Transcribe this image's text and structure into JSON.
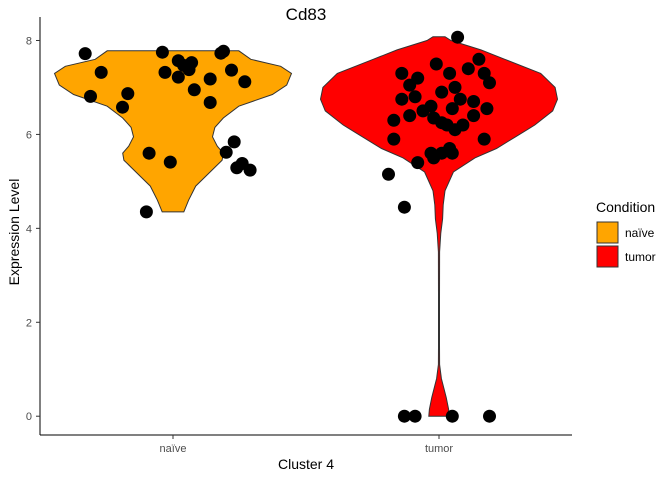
{
  "chart_data": {
    "type": "violin",
    "title": "Cd83",
    "xlabel": "Cluster 4",
    "ylabel": "Expression Level",
    "categories": [
      "naïve",
      "tumor"
    ],
    "ylim": [
      -0.4,
      8.5
    ],
    "yticks": [
      0,
      2,
      4,
      6,
      8
    ],
    "grid": false,
    "legend": {
      "title": "Condition",
      "position": "right",
      "entries": [
        {
          "label": "naïve",
          "color": "#FFA500"
        },
        {
          "label": "tumor",
          "color": "#FF0000"
        }
      ]
    },
    "series": [
      {
        "name": "naïve",
        "color": "#FFA500",
        "violin_range": [
          4.35,
          7.78
        ],
        "density": [
          [
            4.35,
            0.09
          ],
          [
            4.6,
            0.13
          ],
          [
            4.9,
            0.19
          ],
          [
            5.2,
            0.31
          ],
          [
            5.45,
            0.41
          ],
          [
            5.6,
            0.42
          ],
          [
            5.75,
            0.37
          ],
          [
            5.95,
            0.33
          ],
          [
            6.15,
            0.35
          ],
          [
            6.35,
            0.42
          ],
          [
            6.6,
            0.55
          ],
          [
            6.85,
            0.83
          ],
          [
            7.05,
            0.95
          ],
          [
            7.3,
            0.99
          ],
          [
            7.45,
            0.9
          ],
          [
            7.6,
            0.65
          ],
          [
            7.78,
            0.55
          ]
        ],
        "points": [
          [
            -0.04,
            7.75
          ],
          [
            0.19,
            7.77
          ],
          [
            0.18,
            7.73
          ],
          [
            0.02,
            7.57
          ],
          [
            0.07,
            7.53
          ],
          [
            -0.03,
            7.32
          ],
          [
            0.06,
            7.38
          ],
          [
            0.04,
            7.47
          ],
          [
            0.22,
            7.37
          ],
          [
            0.14,
            7.18
          ],
          [
            0.27,
            7.12
          ],
          [
            -0.33,
            7.72
          ],
          [
            -0.27,
            7.32
          ],
          [
            0.02,
            7.22
          ],
          [
            0.08,
            6.95
          ],
          [
            -0.31,
            6.81
          ],
          [
            -0.17,
            6.87
          ],
          [
            0.14,
            6.68
          ],
          [
            -0.19,
            6.58
          ],
          [
            0.23,
            5.84
          ],
          [
            0.2,
            5.62
          ],
          [
            -0.09,
            5.6
          ],
          [
            -0.01,
            5.41
          ],
          [
            0.26,
            5.38
          ],
          [
            0.24,
            5.29
          ],
          [
            0.29,
            5.24
          ],
          [
            -0.1,
            4.35
          ]
        ]
      },
      {
        "name": "tumor",
        "color": "#FF0000",
        "violin_range": [
          0,
          8.08
        ],
        "density": [
          [
            0,
            0.085
          ],
          [
            0.15,
            0.08
          ],
          [
            0.4,
            0.06
          ],
          [
            0.6,
            0.04
          ],
          [
            0.8,
            0.02
          ],
          [
            1.1,
            0.005
          ],
          [
            1.5,
            0.004
          ],
          [
            2.5,
            0.004
          ],
          [
            3.5,
            0.005
          ],
          [
            3.9,
            0.015
          ],
          [
            4.2,
            0.03
          ],
          [
            4.5,
            0.035
          ],
          [
            4.8,
            0.05
          ],
          [
            5.2,
            0.12
          ],
          [
            5.5,
            0.3
          ],
          [
            5.7,
            0.48
          ],
          [
            5.95,
            0.64
          ],
          [
            6.2,
            0.8
          ],
          [
            6.5,
            0.95
          ],
          [
            6.75,
            0.99
          ],
          [
            7.0,
            0.97
          ],
          [
            7.3,
            0.85
          ],
          [
            7.6,
            0.55
          ],
          [
            7.8,
            0.35
          ],
          [
            8.0,
            0.1
          ],
          [
            8.08,
            0.05
          ]
        ],
        "points": [
          [
            0.07,
            8.07
          ],
          [
            0.15,
            7.6
          ],
          [
            -0.01,
            7.5
          ],
          [
            0.11,
            7.4
          ],
          [
            0.04,
            7.3
          ],
          [
            0.17,
            7.3
          ],
          [
            -0.14,
            7.3
          ],
          [
            -0.08,
            7.2
          ],
          [
            0.19,
            7.1
          ],
          [
            -0.11,
            7.05
          ],
          [
            0.06,
            7.0
          ],
          [
            0.01,
            6.9
          ],
          [
            -0.09,
            6.8
          ],
          [
            -0.14,
            6.75
          ],
          [
            0.08,
            6.75
          ],
          [
            0.13,
            6.7
          ],
          [
            -0.03,
            6.6
          ],
          [
            0.05,
            6.55
          ],
          [
            -0.06,
            6.5
          ],
          [
            0.18,
            6.55
          ],
          [
            -0.11,
            6.4
          ],
          [
            0.13,
            6.4
          ],
          [
            -0.02,
            6.35
          ],
          [
            -0.17,
            6.3
          ],
          [
            0.01,
            6.25
          ],
          [
            0.03,
            6.2
          ],
          [
            0.09,
            6.2
          ],
          [
            0.06,
            6.1
          ],
          [
            0.17,
            5.9
          ],
          [
            -0.17,
            5.9
          ],
          [
            0.04,
            5.7
          ],
          [
            0.01,
            5.6
          ],
          [
            -0.03,
            5.6
          ],
          [
            0.05,
            5.6
          ],
          [
            -0.02,
            5.5
          ],
          [
            -0.08,
            5.4
          ],
          [
            -0.19,
            5.15
          ],
          [
            -0.13,
            4.45
          ],
          [
            -0.13,
            0.0
          ],
          [
            -0.09,
            0.0
          ],
          [
            0.05,
            0.0
          ],
          [
            0.19,
            0.0
          ]
        ]
      }
    ]
  }
}
